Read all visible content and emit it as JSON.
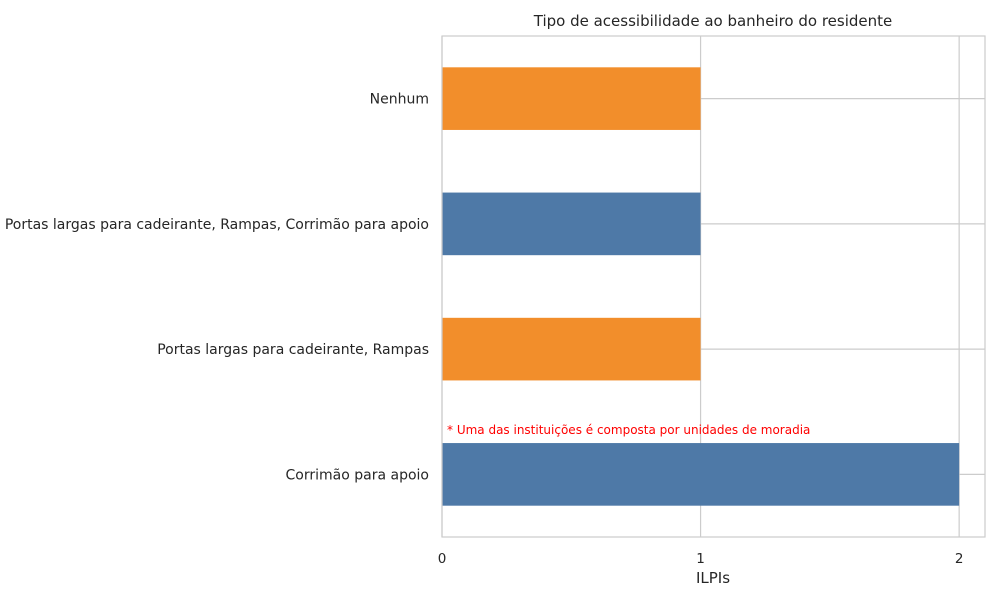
{
  "chart_data": {
    "type": "bar",
    "orientation": "horizontal",
    "title": "Tipo de acessibilidade ao banheiro do residente",
    "xlabel": "ILPIs",
    "ylabel": "",
    "categories": [
      "Nenhum",
      "Portas largas para cadeirante, Rampas, Corrimão para apoio",
      "Portas largas para cadeirante, Rampas",
      "Corrimão para apoio"
    ],
    "values": [
      1,
      1,
      1,
      2
    ],
    "bar_colors": [
      "#f28e2b",
      "#4e79a7",
      "#f28e2b",
      "#4e79a7"
    ],
    "xlim": [
      0,
      2.1
    ],
    "xticks": [
      0,
      1,
      2
    ],
    "grid": true,
    "annotation": {
      "text": "* Uma das instituições é composta por unidades de moradia",
      "color": "#ff0000"
    }
  }
}
